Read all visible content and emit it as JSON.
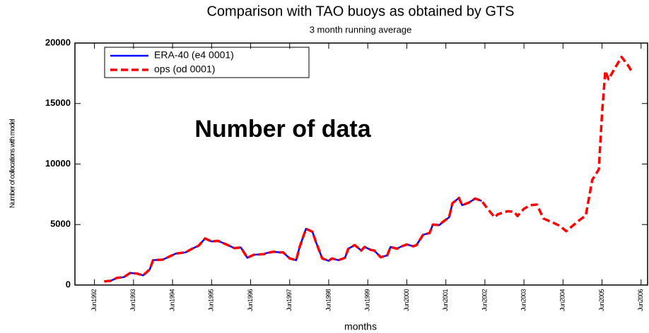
{
  "chart_data": {
    "type": "line",
    "title": "Comparison with TAO buoys as obtained by GTS",
    "subtitle": "3 month running average",
    "annotation": "Number of data",
    "x_label": "months",
    "y_label": "Number of collocations with model",
    "xlim": [
      "1991-12",
      "2006-08"
    ],
    "xticks": [
      {
        "value": "1992-06",
        "label": "Jun1992"
      },
      {
        "value": "1993-06",
        "label": "Jun1993"
      },
      {
        "value": "1994-06",
        "label": "Jun1994"
      },
      {
        "value": "1995-06",
        "label": "Jun1995"
      },
      {
        "value": "1996-06",
        "label": "Jun1996"
      },
      {
        "value": "1997-06",
        "label": "Jun1997"
      },
      {
        "value": "1998-06",
        "label": "Jun1998"
      },
      {
        "value": "1999-06",
        "label": "Jun1999"
      },
      {
        "value": "2000-06",
        "label": "Jun2000"
      },
      {
        "value": "2001-06",
        "label": "Jun2001"
      },
      {
        "value": "2002-06",
        "label": "Jun2002"
      },
      {
        "value": "2003-06",
        "label": "Jun2003"
      },
      {
        "value": "2004-06",
        "label": "Jun2004"
      },
      {
        "value": "2005-06",
        "label": "Jun2005"
      },
      {
        "value": "2006-06",
        "label": "Jun2006"
      }
    ],
    "ylim": [
      0,
      20000
    ],
    "yticks": [
      0,
      5000,
      10000,
      15000,
      20000
    ],
    "grid": false,
    "legend": "upper left",
    "x": [
      "1992-09",
      "1992-11",
      "1993-01",
      "1993-03",
      "1993-05",
      "1993-07",
      "1993-09",
      "1993-11",
      "1993-12",
      "1994-03",
      "1994-05",
      "1994-07",
      "1994-10",
      "1994-12",
      "1995-02",
      "1995-04",
      "1995-06",
      "1995-08",
      "1995-11",
      "1996-01",
      "1996-03",
      "1996-05",
      "1996-07",
      "1996-10",
      "1996-11",
      "1997-01",
      "1997-03",
      "1997-04",
      "1997-06",
      "1997-08",
      "1997-09",
      "1997-11",
      "1998-01",
      "1998-02",
      "1998-04",
      "1998-06",
      "1998-07",
      "1998-09",
      "1998-11",
      "1998-12",
      "1999-02",
      "1999-04",
      "1999-05",
      "1999-07",
      "1999-08",
      "1999-10",
      "1999-12",
      "2000-01",
      "2000-03",
      "2000-04",
      "2000-06",
      "2000-08",
      "2000-09",
      "2000-11",
      "2001-01",
      "2001-02",
      "2001-04",
      "2001-05",
      "2001-07",
      "2001-08",
      "2001-10",
      "2001-11",
      "2002-01",
      "2002-03",
      "2002-05",
      "2002-07",
      "2002-09",
      "2002-10",
      "2003-01",
      "2003-03",
      "2003-04",
      "2003-06",
      "2003-08",
      "2003-10",
      "2003-12",
      "2004-03",
      "2004-05",
      "2004-07",
      "2004-09",
      "2004-11",
      "2005-01",
      "2005-03",
      "2005-05",
      "2005-06",
      "2005-07",
      "2005-08",
      "2005-10",
      "2005-12",
      "2006-02",
      "2006-03"
    ],
    "series": [
      {
        "name": "ERA-40 (e4 0001)",
        "color": "#0000ff",
        "style": "solid",
        "values": [
          300,
          350,
          600,
          650,
          1000,
          950,
          800,
          1300,
          2050,
          2100,
          2350,
          2600,
          2700,
          3000,
          3250,
          3850,
          3600,
          3650,
          3300,
          3050,
          3100,
          2250,
          2500,
          2550,
          2650,
          2750,
          2700,
          2700,
          2200,
          2050,
          3100,
          4650,
          4400,
          3600,
          2200,
          2000,
          2200,
          2050,
          2250,
          3000,
          3300,
          2850,
          3150,
          2900,
          2850,
          2300,
          2450,
          3150,
          3000,
          3150,
          3350,
          3200,
          3300,
          4150,
          4300,
          5000,
          4950,
          5200,
          5600,
          6750,
          7200,
          6600,
          6800,
          7150,
          6950,
          null,
          null,
          null,
          null,
          null,
          null,
          null,
          null,
          null,
          null,
          null,
          null,
          null,
          null,
          null,
          null,
          null,
          null,
          null,
          null,
          null,
          null,
          null,
          null,
          null
        ]
      },
      {
        "name": "ops (od 0001)",
        "color": "#ff0000",
        "style": "dashed",
        "values": [
          300,
          350,
          600,
          650,
          1000,
          950,
          800,
          1300,
          2050,
          2100,
          2350,
          2600,
          2700,
          3000,
          3250,
          3850,
          3600,
          3650,
          3300,
          3050,
          3100,
          2250,
          2500,
          2550,
          2650,
          2750,
          2700,
          2700,
          2200,
          2050,
          3100,
          4650,
          4400,
          3600,
          2200,
          2000,
          2200,
          2050,
          2250,
          3000,
          3300,
          2850,
          3150,
          2900,
          2850,
          2300,
          2450,
          3150,
          3000,
          3150,
          3350,
          3200,
          3300,
          4150,
          4300,
          5000,
          4950,
          5200,
          5600,
          6750,
          7200,
          6600,
          6800,
          7150,
          6950,
          6250,
          5600,
          5850,
          6100,
          6050,
          5700,
          6300,
          6600,
          6650,
          5500,
          5150,
          4900,
          4450,
          4900,
          5350,
          5750,
          8700,
          9550,
          14200,
          17700,
          17000,
          17950,
          18850,
          18150,
          17700
        ]
      }
    ]
  }
}
